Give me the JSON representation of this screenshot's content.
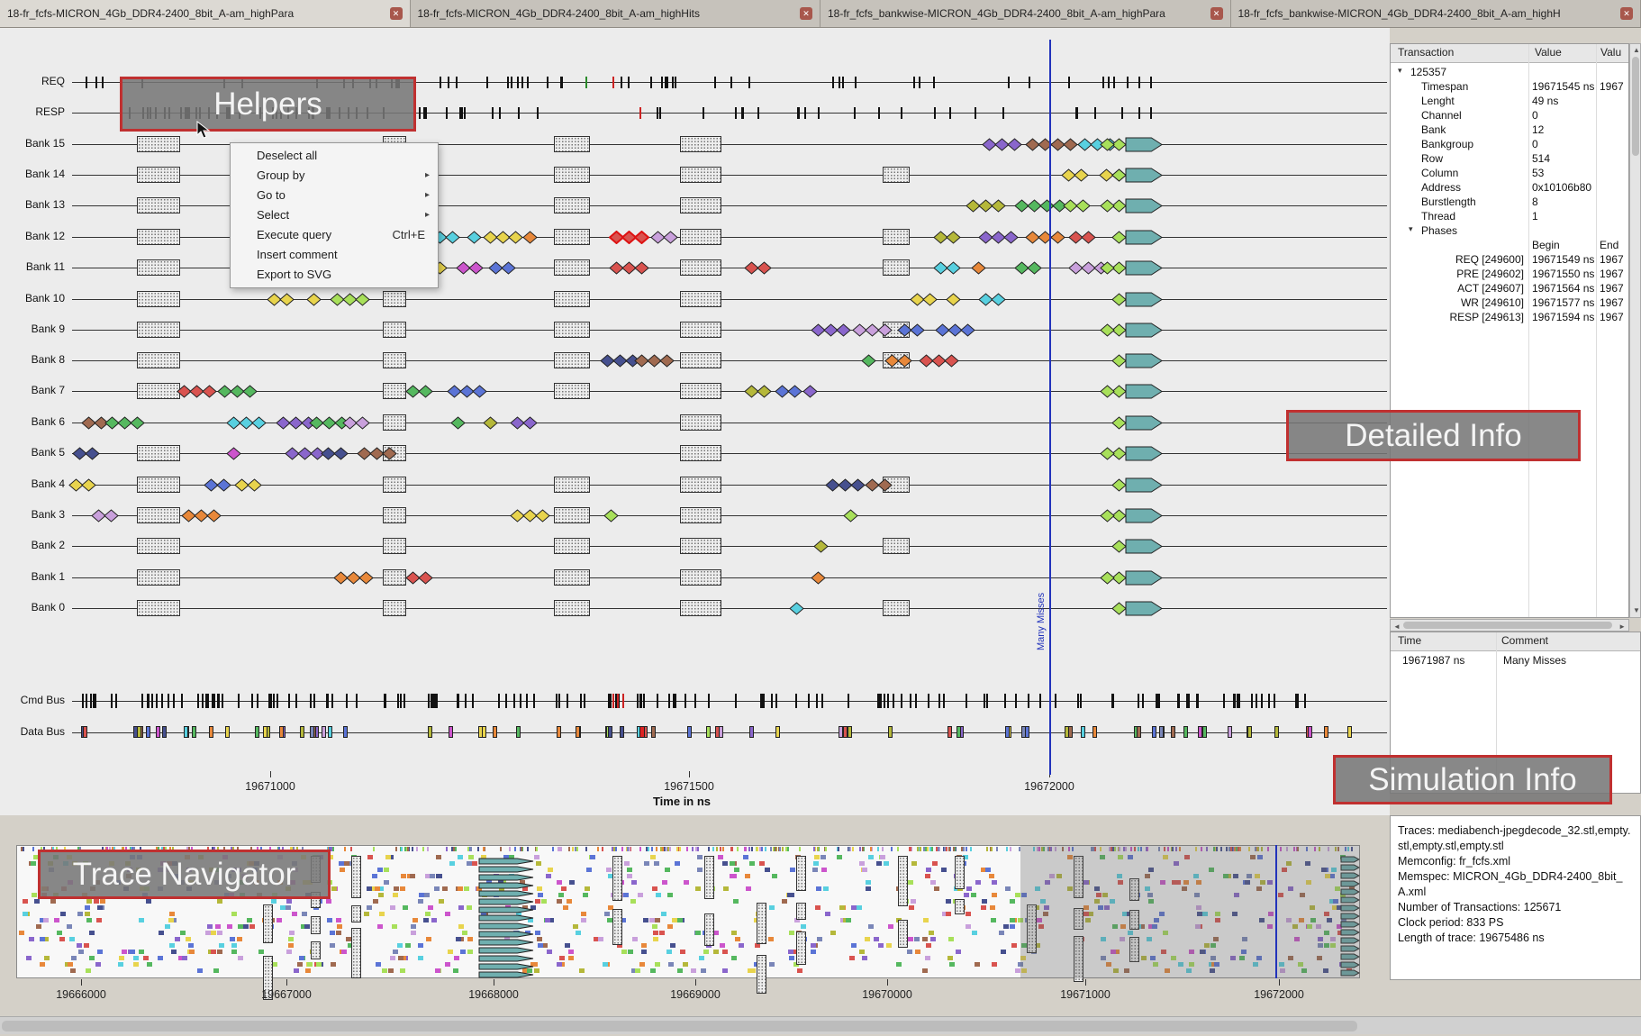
{
  "tabs": [
    {
      "label": "18-fr_fcfs-MICRON_4Gb_DDR4-2400_8bit_A-am_highPara",
      "active": true
    },
    {
      "label": "18-fr_fcfs-MICRON_4Gb_DDR4-2400_8bit_A-am_highHits",
      "active": false
    },
    {
      "label": "18-fr_fcfs_bankwise-MICRON_4Gb_DDR4-2400_8bit_A-am_highPara",
      "active": false
    },
    {
      "label": "18-fr_fcfs_bankwise-MICRON_4Gb_DDR4-2400_8bit_A-am_highH",
      "active": false
    }
  ],
  "overlays": {
    "helpers": "Helpers",
    "detailed_info": "Detailed Info",
    "simulation_info": "Simulation Info",
    "trace_navigator": "Trace Navigator"
  },
  "context_menu": {
    "items": [
      {
        "label": "Deselect all",
        "submenu": false,
        "shortcut": ""
      },
      {
        "label": "Group by",
        "submenu": true,
        "shortcut": ""
      },
      {
        "label": "Go to",
        "submenu": true,
        "shortcut": ""
      },
      {
        "label": "Select",
        "submenu": true,
        "shortcut": ""
      },
      {
        "label": "Execute query",
        "submenu": false,
        "shortcut": "Ctrl+E"
      },
      {
        "label": "Insert comment",
        "submenu": false,
        "shortcut": ""
      },
      {
        "label": "Export to SVG",
        "submenu": false,
        "shortcut": ""
      }
    ]
  },
  "timeline": {
    "rows": [
      "REQ",
      "RESP",
      "Bank 15",
      "Bank 14",
      "Bank 13",
      "Bank 12",
      "Bank 11",
      "Bank 10",
      "Bank 9",
      "Bank 8",
      "Bank 7",
      "Bank 6",
      "Bank 5",
      "Bank 4",
      "Bank 3",
      "Bank 2",
      "Bank 1",
      "Bank 0",
      "Cmd Bus",
      "Data Bus"
    ],
    "axis_ticks": [
      "19671000",
      "19671500",
      "19672000"
    ],
    "axis_label": "Time in ns",
    "marker_label": "Many Misses"
  },
  "transaction_panel": {
    "columns": [
      "Transaction",
      "Value",
      "Valu"
    ],
    "root": "125357",
    "fields": [
      {
        "name": "Timespan",
        "value": "19671545 ns",
        "value2": "1967"
      },
      {
        "name": "Lenght",
        "value": "49 ns",
        "value2": ""
      },
      {
        "name": "Channel",
        "value": "0",
        "value2": ""
      },
      {
        "name": "Bank",
        "value": "12",
        "value2": ""
      },
      {
        "name": "Bankgroup",
        "value": "0",
        "value2": ""
      },
      {
        "name": "Row",
        "value": "514",
        "value2": ""
      },
      {
        "name": "Column",
        "value": "53",
        "value2": ""
      },
      {
        "name": "Address",
        "value": "0x10106b80",
        "value2": ""
      },
      {
        "name": "Burstlength",
        "value": "8",
        "value2": ""
      },
      {
        "name": "Thread",
        "value": "1",
        "value2": ""
      }
    ],
    "phases_label": "Phases",
    "phases_columns": [
      "Begin",
      "End"
    ],
    "phases": [
      {
        "name": "REQ [249600]",
        "begin": "19671549 ns",
        "end": "1967"
      },
      {
        "name": "PRE [249602]",
        "begin": "19671550 ns",
        "end": "1967"
      },
      {
        "name": "ACT [249607]",
        "begin": "19671564 ns",
        "end": "1967"
      },
      {
        "name": "WR [249610]",
        "begin": "19671577 ns",
        "end": "1967"
      },
      {
        "name": "RESP [249613]",
        "begin": "19671594 ns",
        "end": "1967"
      }
    ]
  },
  "comments_panel": {
    "columns": [
      "Time",
      "Comment"
    ],
    "rows": [
      {
        "time": "19671987 ns",
        "comment": "Many Misses"
      }
    ]
  },
  "simulation_info": {
    "lines": [
      "Traces: mediabench-jpegdecode_32.stl,empty.stl,empty.stl,empty.stl",
      "Memconfig: fr_fcfs.xml",
      "Memspec: MICRON_4Gb_DDR4-2400_8bit_A.xml",
      "Number of Transactions: 125671",
      "Clock period: 833 PS",
      "Length of trace: 19675486 ns"
    ]
  },
  "navigator": {
    "axis_ticks": [
      "19666000",
      "19667000",
      "19668000",
      "19669000",
      "19670000",
      "19671000",
      "19672000"
    ]
  },
  "colors": {
    "palette": [
      "#d9534f",
      "#e8883a",
      "#e8d44d",
      "#a8e05a",
      "#55b85f",
      "#58d0e0",
      "#5b74d6",
      "#46508f",
      "#8a66cc",
      "#c9a0dc",
      "#cc55cc",
      "#a06a50",
      "#b5b83a",
      "#7a86b8"
    ],
    "teal": "#6fafaf",
    "marker_blue": "#2233bb",
    "highlight_red": "#dd1111",
    "overlay_border": "#c03030"
  }
}
